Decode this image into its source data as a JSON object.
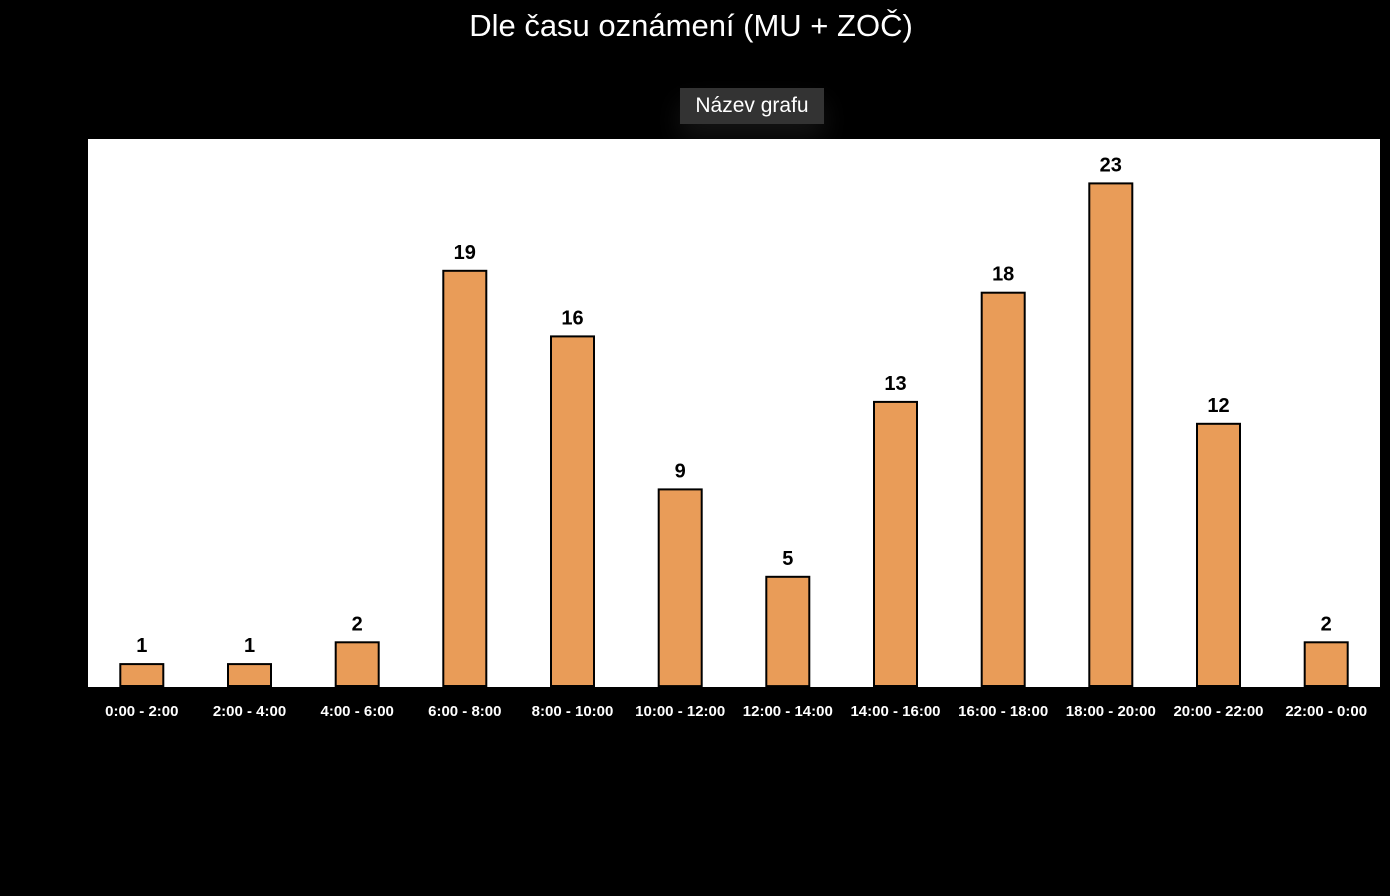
{
  "page": {
    "title": "Dle času oznámení (MU + ZOČ)"
  },
  "chart_name_tag": {
    "label": "Název grafu"
  },
  "colors": {
    "background": "#000000",
    "plot_area": "#ffffff",
    "bar_fill": "#e99c58",
    "bar_stroke": "#000000",
    "value_label": "#000000",
    "tick_label": "#ffffff",
    "tag_background": "#333333"
  },
  "chart_data": {
    "type": "bar",
    "title": "Dle času oznámení (MU + ZOČ)",
    "xlabel": "",
    "ylabel": "",
    "categories": [
      "0:00 - 2:00",
      "2:00 - 4:00",
      "4:00 - 6:00",
      "6:00 - 8:00",
      "8:00 - 10:00",
      "10:00 - 12:00",
      "12:00 - 14:00",
      "14:00 - 16:00",
      "16:00 - 18:00",
      "18:00 - 20:00",
      "20:00 - 22:00",
      "22:00 - 0:00"
    ],
    "values": [
      1,
      1,
      2,
      19,
      16,
      9,
      5,
      13,
      18,
      23,
      12,
      2
    ],
    "data_labels": true,
    "ylim": [
      0,
      25
    ],
    "grid": false,
    "legend": "none"
  }
}
